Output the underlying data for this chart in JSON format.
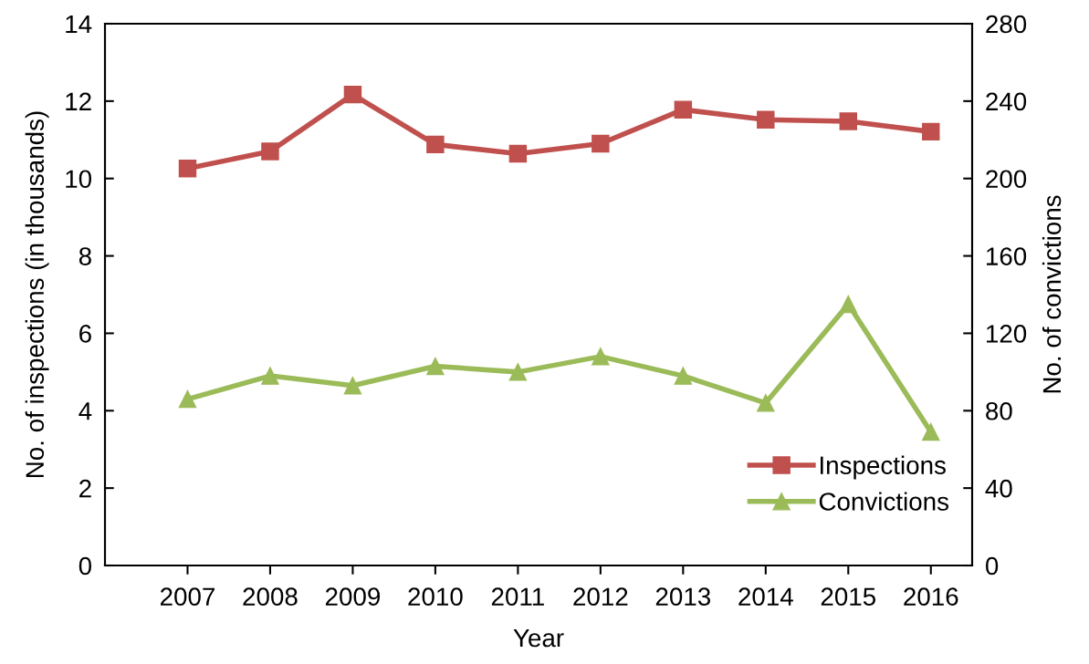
{
  "chart_data": {
    "type": "line",
    "xlabel": "Year",
    "ylabel": "No. of inspections (in thousands)",
    "y2label": "No. of convictions",
    "categories": [
      "2007",
      "2008",
      "2009",
      "2010",
      "2011",
      "2012",
      "2013",
      "2014",
      "2015",
      "2016"
    ],
    "series": [
      {
        "name": "Inspections",
        "color": "#c0504d",
        "marker": "square",
        "values": [
          10.26,
          10.7,
          12.17,
          10.88,
          10.64,
          10.9,
          11.78,
          11.52,
          11.48,
          11.21
        ]
      },
      {
        "name": "Convictions",
        "color": "#9bbb59",
        "marker": "triangle",
        "axis": "y2",
        "values": [
          86,
          98,
          93,
          103,
          100,
          108,
          98,
          84,
          135,
          69
        ]
      }
    ],
    "ylim": [
      0,
      14
    ],
    "yticks": [
      0,
      2,
      4,
      6,
      8,
      10,
      12,
      14
    ],
    "y2lim": [
      0,
      280
    ],
    "y2ticks": [
      0,
      40,
      80,
      120,
      160,
      200,
      240,
      280
    ],
    "grid": false,
    "legend": "bottom right",
    "line_style": "solid"
  }
}
